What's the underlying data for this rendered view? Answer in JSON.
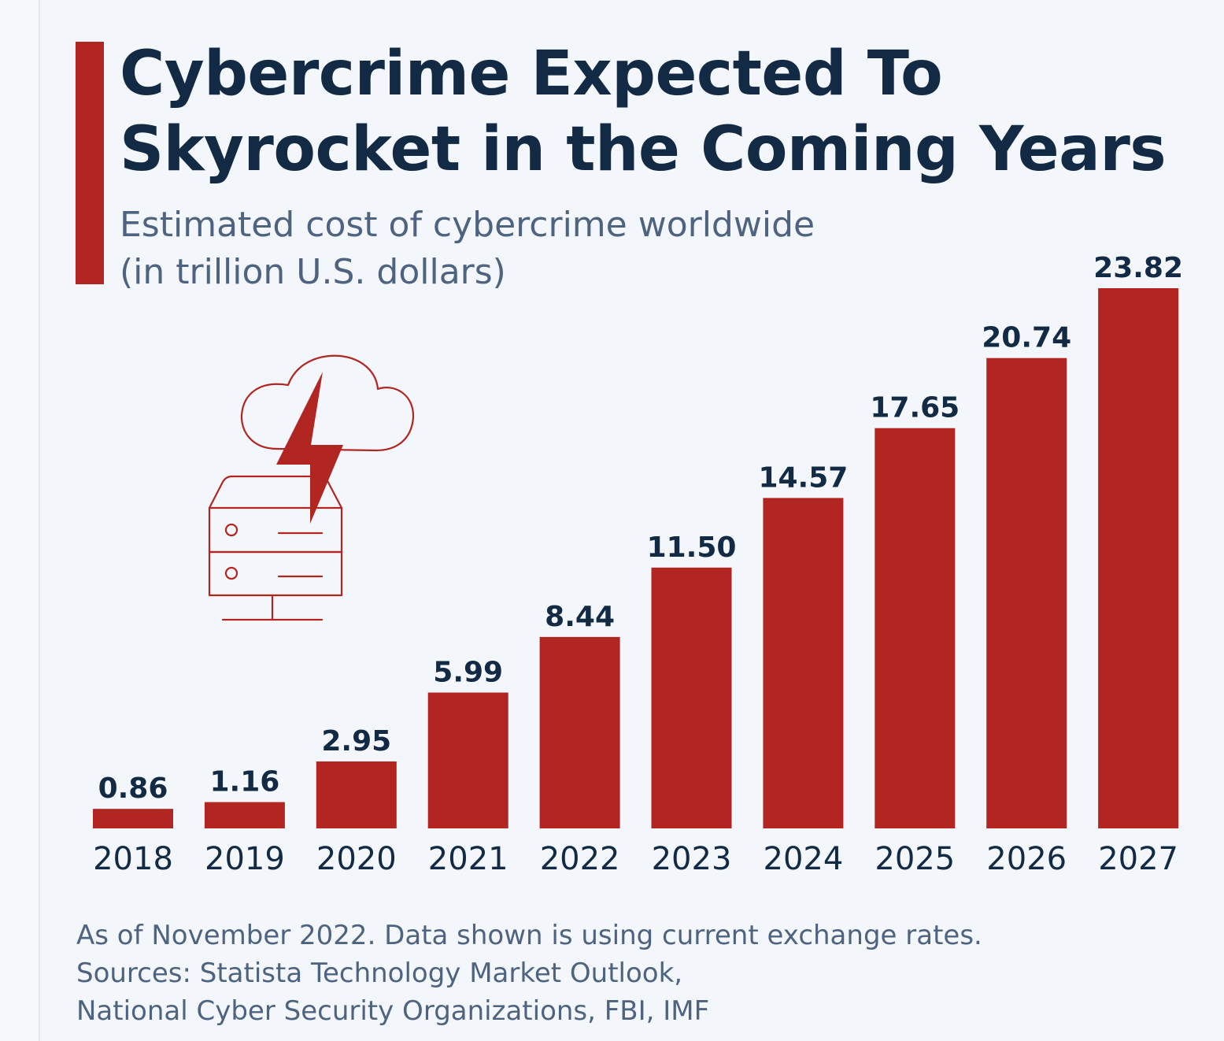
{
  "header": {
    "title_line1": "Cybercrime Expected To",
    "title_line2": "Skyrocket in the Coming Years",
    "subtitle_line1": "Estimated cost of cybercrime worldwide",
    "subtitle_line2": "(in trillion U.S. dollars)"
  },
  "illustration": {
    "icon": "cloud-lightning-server-icon",
    "color": "#b22622"
  },
  "footer": {
    "note": "As of November 2022. Data shown is using current exchange rates.",
    "sources_line1": "Sources: Statista Technology Market Outlook,",
    "sources_line2": "National Cyber Security Organizations, FBI, IMF"
  },
  "colors": {
    "bar": "#b22622",
    "text_dark": "#132a45",
    "text_muted": "#4e6380",
    "background": "#f3f6fa"
  },
  "chart_data": {
    "type": "bar",
    "title": "Cybercrime Expected To Skyrocket in the Coming Years",
    "subtitle": "Estimated cost of cybercrime worldwide (in trillion U.S. dollars)",
    "xlabel": "",
    "ylabel": "Trillion U.S. dollars",
    "categories": [
      "2018",
      "2019",
      "2020",
      "2021",
      "2022",
      "2023",
      "2024",
      "2025",
      "2026",
      "2027"
    ],
    "values": [
      0.86,
      1.16,
      2.95,
      5.99,
      8.44,
      11.5,
      14.57,
      17.65,
      20.74,
      23.82
    ],
    "value_labels": [
      "0.86",
      "1.16",
      "2.95",
      "5.99",
      "8.44",
      "11.50",
      "14.57",
      "17.65",
      "20.74",
      "23.82"
    ],
    "ylim": [
      0,
      23.82
    ],
    "grid": false,
    "legend": "none"
  }
}
